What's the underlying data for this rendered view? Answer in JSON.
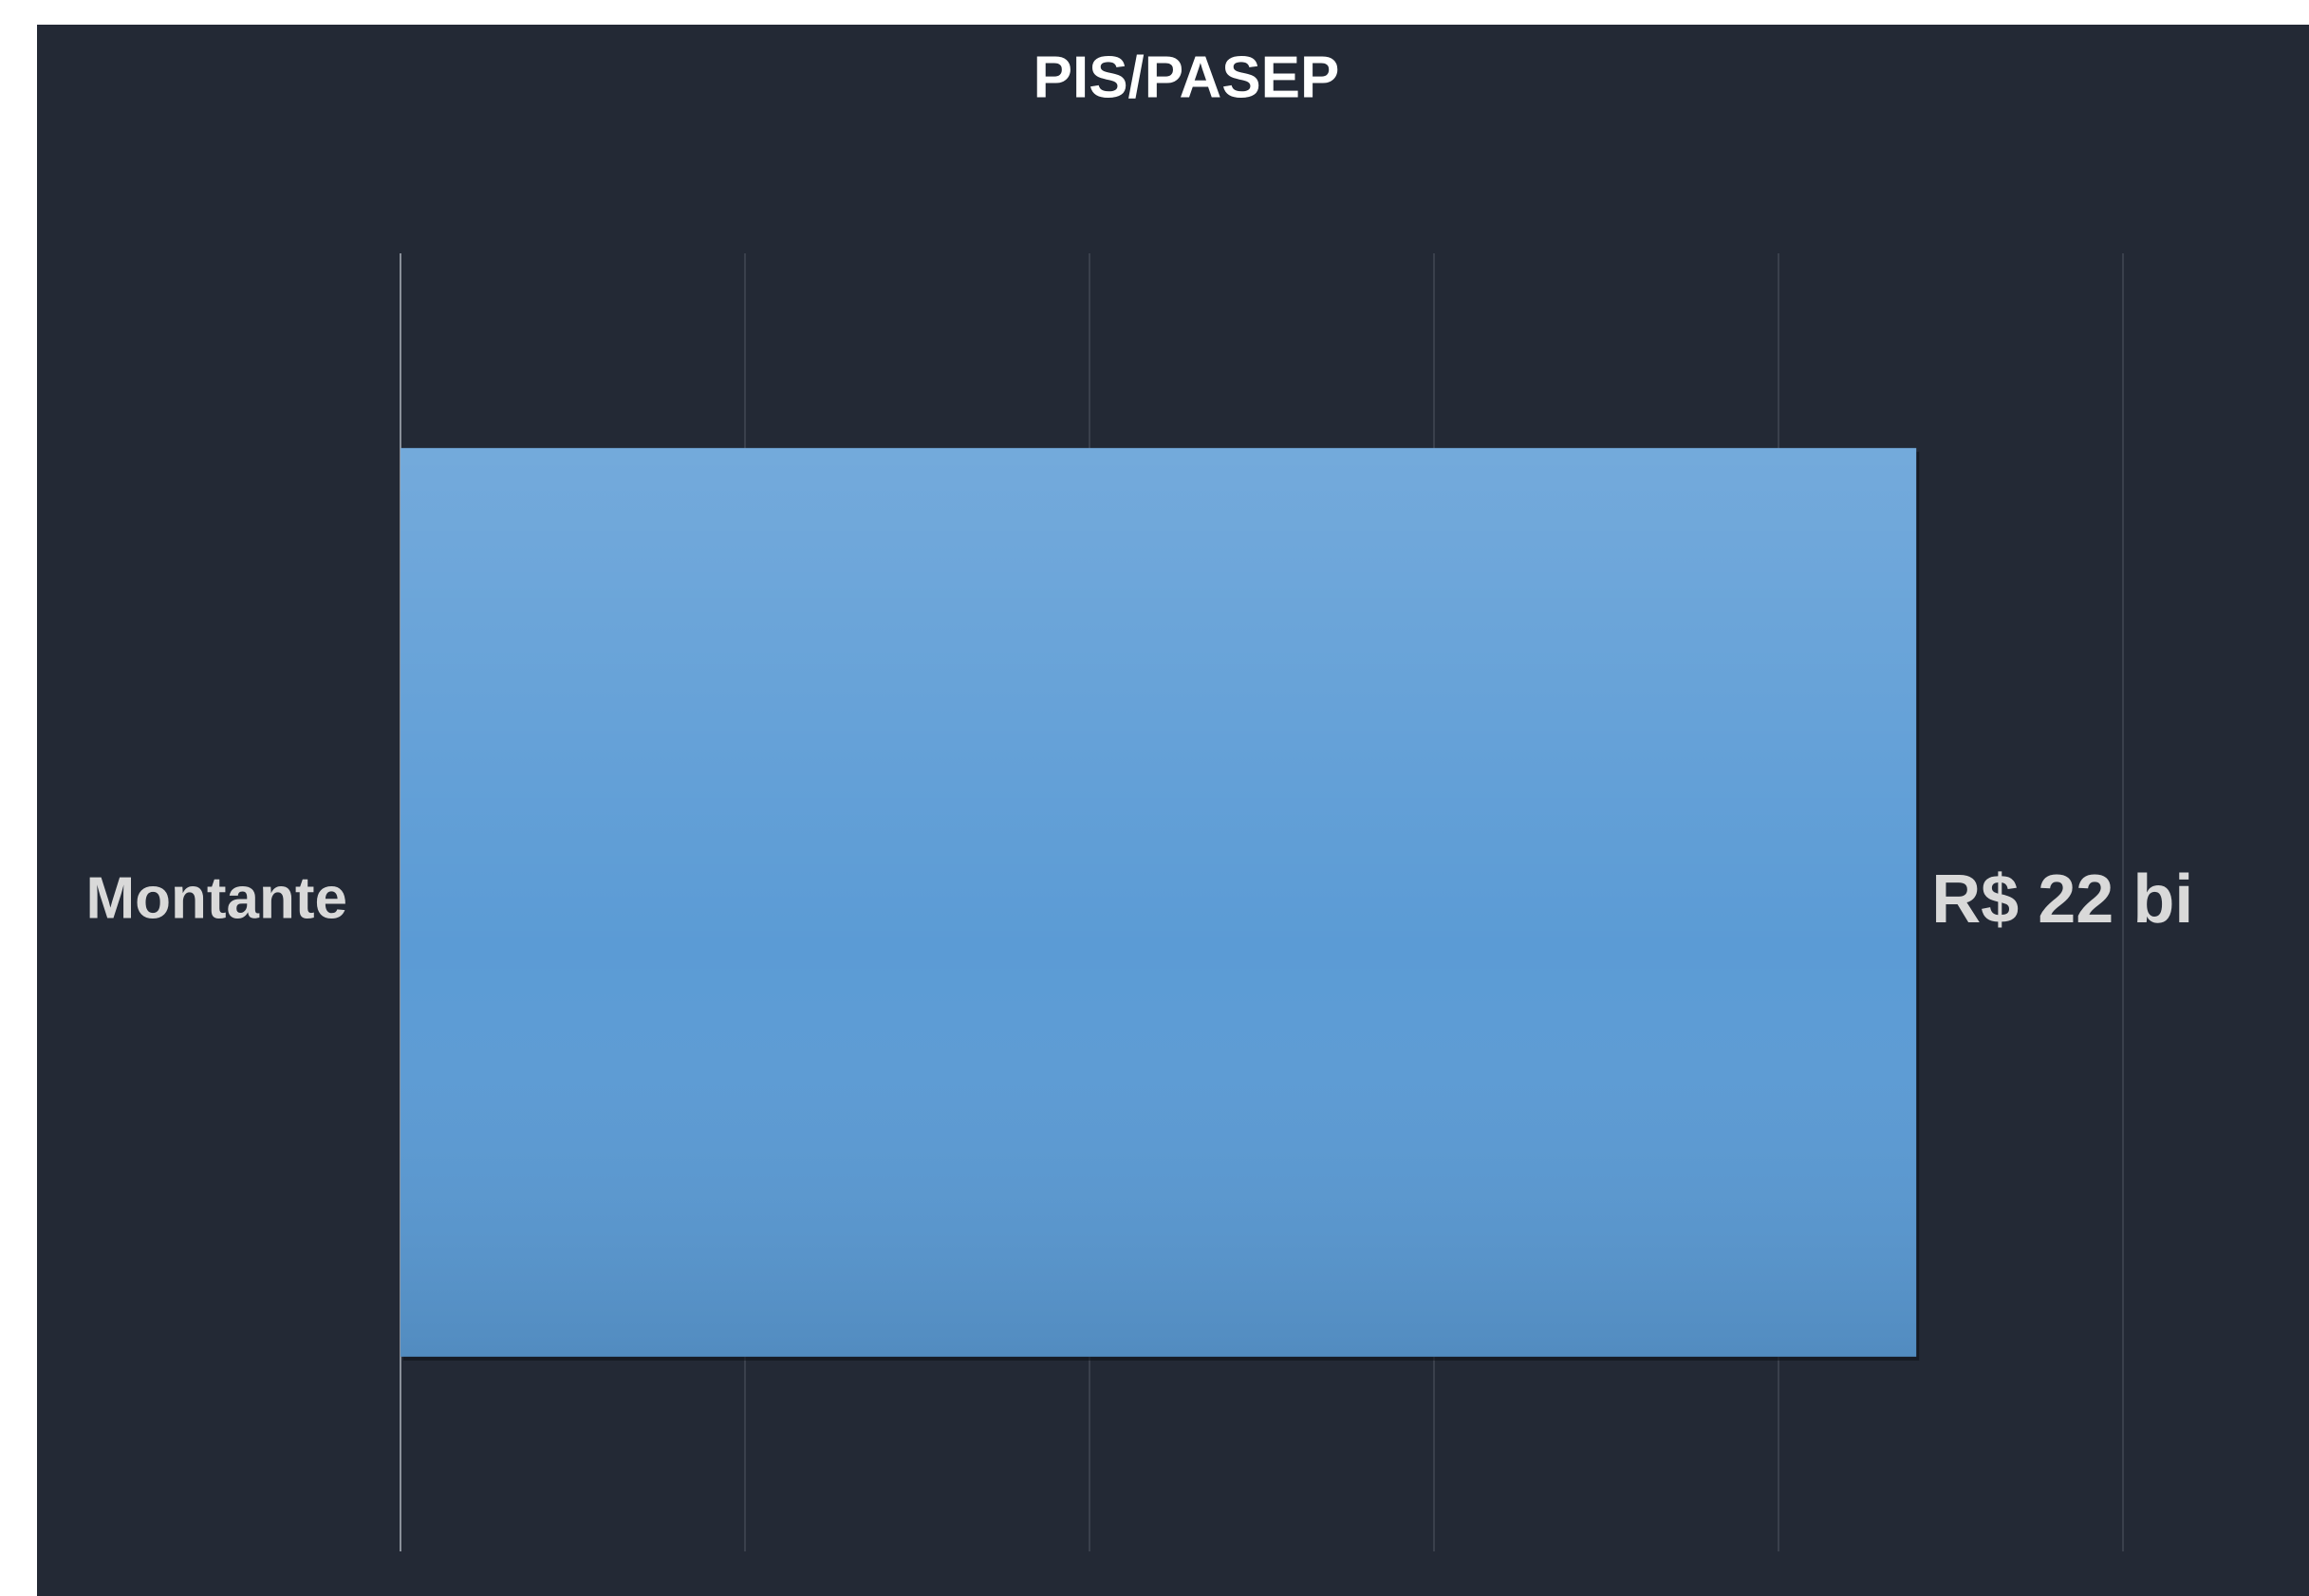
{
  "chart_data": {
    "type": "barh",
    "title": "PIS/PASEP",
    "categories": [
      "Montante"
    ],
    "values": [
      22
    ],
    "value_labels": [
      "R$ 22 bi"
    ],
    "color": "#5b9bd5",
    "xlim": [
      0,
      25
    ],
    "xticks": [
      0,
      5,
      10,
      15,
      20,
      25
    ],
    "grid": true
  }
}
